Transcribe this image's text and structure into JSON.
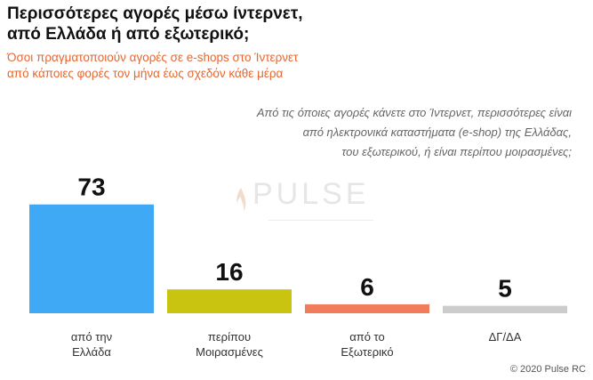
{
  "chart_data": {
    "type": "bar",
    "title": "Περισσότερες αγορές μέσω ίντερνετ,\nαπό Ελλάδα ή από εξωτερικό;",
    "subtitle": "Όσοι πραγματοποιούν αγορές σε e-shops στο Ίντερνετ\nαπό κάποιες φορές τον μήνα έως σχεδόν κάθε μέρα",
    "question": "Από τις όποιες αγορές κάνετε στο Ίντερνετ, περισσότερες είναι\nαπό ηλεκτρονικά καταστήματα (e-shop) της Ελλάδας,\nτου εξωτερικού, ή είναι περίπου μοιρασμένες;",
    "categories": [
      "από την\nΕλλάδα",
      "περίπου\nΜοιρασμένες",
      "από το\nΕξωτερικό",
      "ΔΓ/ΔΑ"
    ],
    "values": [
      73,
      16,
      6,
      5
    ],
    "colors": [
      "#3fa9f5",
      "#c8c40f",
      "#f07c5a",
      "#cccccc"
    ],
    "ylim": [
      0,
      80
    ],
    "grid": false,
    "legend": "none"
  },
  "watermark": {
    "text": "PULSE"
  },
  "copyright": "© 2020 Pulse RC"
}
